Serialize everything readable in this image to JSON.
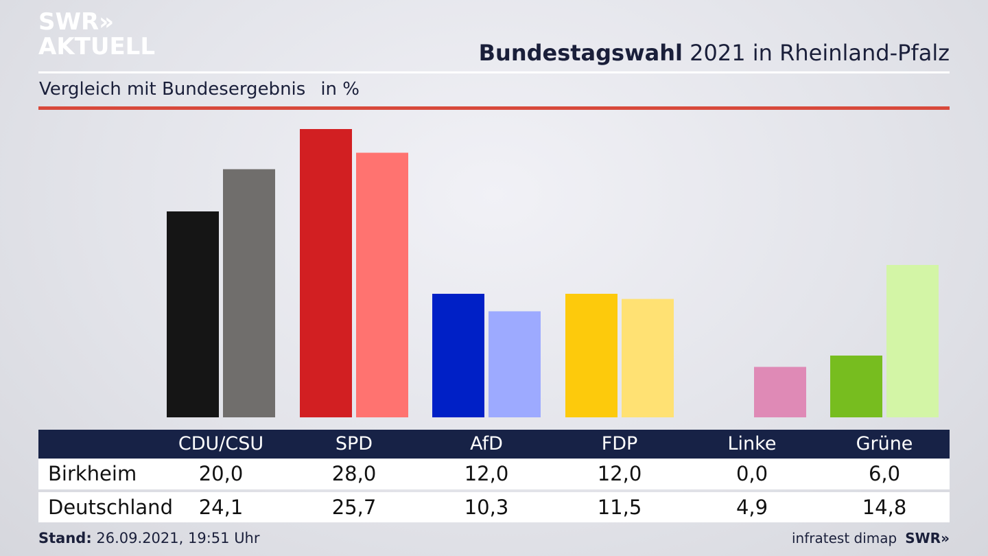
{
  "brand": {
    "line1": "SWR»",
    "line2": "AKTUELL"
  },
  "header": {
    "title_bold": "Bundestagswahl",
    "title_rest": " 2021 in Rheinland-Pfalz"
  },
  "subtitle": {
    "text": "Vergleich mit Bundesergebnis",
    "unit": "in %"
  },
  "chart_data": {
    "type": "bar",
    "categories": [
      "CDU/CSU",
      "SPD",
      "AfD",
      "FDP",
      "Linke",
      "Grüne"
    ],
    "series": [
      {
        "name": "Birkheim",
        "values": [
          20.0,
          28.0,
          12.0,
          12.0,
          0.0,
          6.0
        ],
        "colors": [
          "#151515",
          "#d21f22",
          "#0020c6",
          "#fdca0c",
          "#b93d83",
          "#77bd1f"
        ]
      },
      {
        "name": "Deutschland",
        "values": [
          24.1,
          25.7,
          10.3,
          11.5,
          4.9,
          14.8
        ],
        "colors": [
          "#706e6c",
          "#ff7370",
          "#9daaff",
          "#ffe173",
          "#df8ab6",
          "#d3f5a6"
        ]
      }
    ],
    "value_labels": [
      [
        "20,0",
        "28,0",
        "12,0",
        "12,0",
        "0,0",
        "6,0"
      ],
      [
        "24,1",
        "25,7",
        "10,3",
        "11,5",
        "4,9",
        "14,8"
      ]
    ],
    "ylim": [
      0,
      28
    ],
    "grid": false,
    "legend": "table-below"
  },
  "footer": {
    "stand_label": "Stand:",
    "stand_value": "26.09.2021, 19:51 Uhr",
    "source": "infratest dimap",
    "brand": "SWR»"
  },
  "colors": {
    "table_header": "#172246",
    "accent_rule": "#d8493b"
  }
}
